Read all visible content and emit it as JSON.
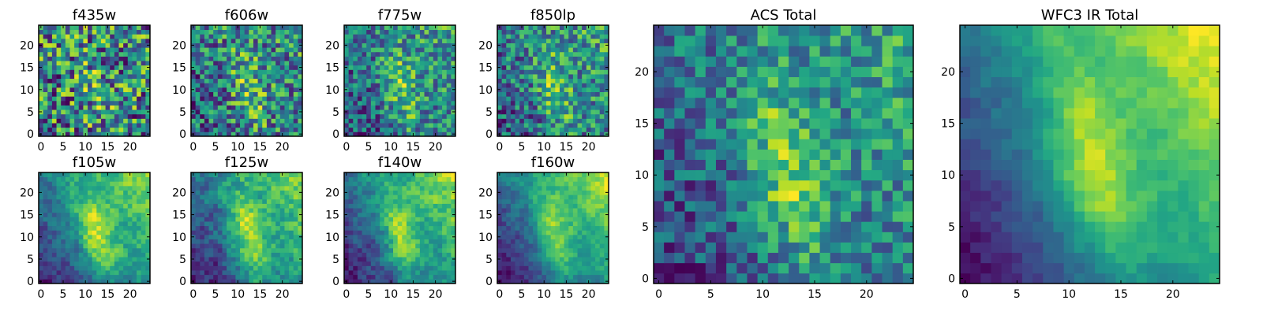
{
  "chart_data": [
    {
      "type": "heatmap",
      "title": "f435w",
      "xticks": [
        "0",
        "5",
        "10",
        "15",
        "20"
      ],
      "yticks": [
        "0",
        "5",
        "10",
        "15",
        "20"
      ],
      "xlim": [
        -0.5,
        24.5
      ],
      "ylim": [
        -0.5,
        24.5
      ],
      "grid": 25,
      "colormap": "viridis",
      "pattern": "noisy",
      "noise": 0.42,
      "base": 0.58,
      "blob_strength": 0.12,
      "gradient_strength": 0.02,
      "seed": 11
    },
    {
      "type": "heatmap",
      "title": "f606w",
      "xticks": [
        "0",
        "5",
        "10",
        "15",
        "20"
      ],
      "yticks": [
        "0",
        "5",
        "10",
        "15",
        "20"
      ],
      "xlim": [
        -0.5,
        24.5
      ],
      "ylim": [
        -0.5,
        24.5
      ],
      "grid": 25,
      "colormap": "viridis",
      "pattern": "noisy",
      "noise": 0.34,
      "base": 0.48,
      "blob_strength": 0.25,
      "gradient_strength": 0.15,
      "seed": 23
    },
    {
      "type": "heatmap",
      "title": "f775w",
      "xticks": [
        "0",
        "5",
        "10",
        "15",
        "20"
      ],
      "yticks": [
        "0",
        "5",
        "10",
        "15",
        "20"
      ],
      "xlim": [
        -0.5,
        24.5
      ],
      "ylim": [
        -0.5,
        24.5
      ],
      "grid": 25,
      "colormap": "viridis",
      "pattern": "noisy",
      "noise": 0.3,
      "base": 0.42,
      "blob_strength": 0.3,
      "gradient_strength": 0.3,
      "seed": 37
    },
    {
      "type": "heatmap",
      "title": "f850lp",
      "xticks": [
        "0",
        "5",
        "10",
        "15",
        "20"
      ],
      "yticks": [
        "0",
        "5",
        "10",
        "15",
        "20"
      ],
      "xlim": [
        -0.5,
        24.5
      ],
      "ylim": [
        -0.5,
        24.5
      ],
      "grid": 25,
      "colormap": "viridis",
      "pattern": "noisy",
      "noise": 0.3,
      "base": 0.45,
      "blob_strength": 0.28,
      "gradient_strength": 0.25,
      "seed": 41
    },
    {
      "type": "heatmap",
      "title": "f105w",
      "xticks": [
        "0",
        "5",
        "10",
        "15",
        "20"
      ],
      "yticks": [
        "0",
        "5",
        "10",
        "15",
        "20"
      ],
      "xlim": [
        -0.5,
        24.5
      ],
      "ylim": [
        -0.5,
        24.5
      ],
      "grid": 25,
      "colormap": "viridis",
      "pattern": "smooth",
      "noise": 0.14,
      "base": 0.32,
      "blob_strength": 0.28,
      "gradient_strength": 0.5,
      "seed": 53
    },
    {
      "type": "heatmap",
      "title": "f125w",
      "xticks": [
        "0",
        "5",
        "10",
        "15",
        "20"
      ],
      "yticks": [
        "0",
        "5",
        "10",
        "15",
        "20"
      ],
      "xlim": [
        -0.5,
        24.5
      ],
      "ylim": [
        -0.5,
        24.5
      ],
      "grid": 25,
      "colormap": "viridis",
      "pattern": "smooth",
      "noise": 0.16,
      "base": 0.35,
      "blob_strength": 0.3,
      "gradient_strength": 0.48,
      "seed": 61
    },
    {
      "type": "heatmap",
      "title": "f140w",
      "xticks": [
        "0",
        "5",
        "10",
        "15",
        "20"
      ],
      "yticks": [
        "0",
        "5",
        "10",
        "15",
        "20"
      ],
      "xlim": [
        -0.5,
        24.5
      ],
      "ylim": [
        -0.5,
        24.5
      ],
      "grid": 25,
      "colormap": "viridis",
      "pattern": "smooth",
      "noise": 0.15,
      "base": 0.28,
      "blob_strength": 0.28,
      "gradient_strength": 0.55,
      "seed": 71
    },
    {
      "type": "heatmap",
      "title": "f160w",
      "xticks": [
        "0",
        "5",
        "10",
        "15",
        "20"
      ],
      "yticks": [
        "0",
        "5",
        "10",
        "15",
        "20"
      ],
      "xlim": [
        -0.5,
        24.5
      ],
      "ylim": [
        -0.5,
        24.5
      ],
      "grid": 25,
      "colormap": "viridis",
      "pattern": "smooth",
      "noise": 0.12,
      "base": 0.22,
      "blob_strength": 0.28,
      "gradient_strength": 0.62,
      "seed": 83
    },
    {
      "type": "heatmap",
      "title": "ACS Total",
      "xticks": [
        "0",
        "5",
        "10",
        "15",
        "20"
      ],
      "yticks": [
        "0",
        "5",
        "10",
        "15",
        "20"
      ],
      "xlim": [
        -0.5,
        24.5
      ],
      "ylim": [
        -0.5,
        24.5
      ],
      "grid": 25,
      "colormap": "viridis",
      "pattern": "noisy",
      "noise": 0.22,
      "base": 0.4,
      "blob_strength": 0.35,
      "gradient_strength": 0.35,
      "seed": 97
    },
    {
      "type": "heatmap",
      "title": "WFC3 IR Total",
      "xticks": [
        "0",
        "5",
        "10",
        "15",
        "20"
      ],
      "yticks": [
        "0",
        "5",
        "10",
        "15",
        "20"
      ],
      "xlim": [
        -0.5,
        24.5
      ],
      "ylim": [
        -0.5,
        24.5
      ],
      "grid": 25,
      "colormap": "viridis",
      "pattern": "smooth",
      "noise": 0.08,
      "base": 0.2,
      "blob_strength": 0.3,
      "gradient_strength": 0.68,
      "seed": 101
    }
  ]
}
